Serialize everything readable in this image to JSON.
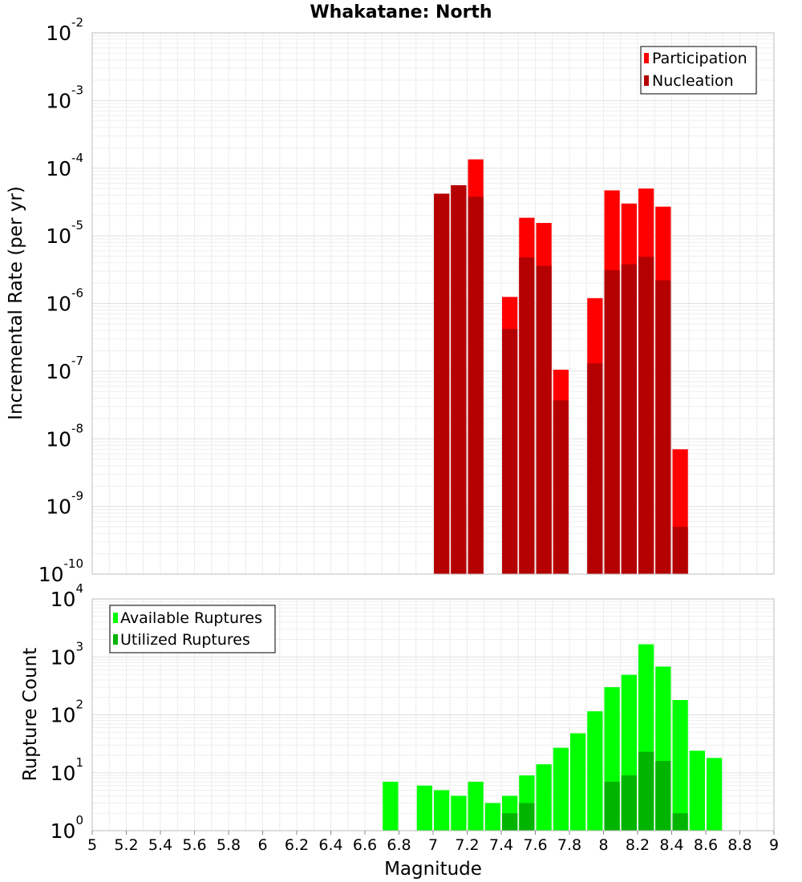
{
  "chart_data": [
    {
      "type": "bar",
      "title": "Whakatane: North",
      "xlabel": "",
      "ylabel": "Incremental Rate (per yr)",
      "yscale": "log",
      "ylim": [
        1e-10,
        0.01
      ],
      "xlim": [
        5,
        9
      ],
      "grid": true,
      "legend_placement": "top-right",
      "x": [
        7.0,
        7.1,
        7.2,
        7.4,
        7.5,
        7.6,
        7.7,
        7.9,
        8.0,
        8.1,
        8.2,
        8.3,
        8.4
      ],
      "series": [
        {
          "name": "Participation",
          "color": "#ff0000",
          "values": [
            4.2e-05,
            5.6e-05,
            0.000135,
            1.25e-06,
            1.85e-05,
            1.55e-05,
            1.05e-07,
            1.2e-06,
            4.7e-05,
            3e-05,
            5e-05,
            2.7e-05,
            7e-09
          ]
        },
        {
          "name": "Nucleation",
          "color": "#b40000",
          "values": [
            4.2e-05,
            5.6e-05,
            3.8e-05,
            4.2e-07,
            4.8e-06,
            3.6e-06,
            3.7e-08,
            1.3e-07,
            3.1e-06,
            3.8e-06,
            4.9e-06,
            2.2e-06,
            5e-10
          ]
        }
      ]
    },
    {
      "type": "bar",
      "title": "",
      "xlabel": "Magnitude",
      "ylabel": "Rupture Count",
      "yscale": "log",
      "ylim": [
        1,
        10000
      ],
      "xlim": [
        5,
        9
      ],
      "grid": true,
      "legend_placement": "top-left",
      "x": [
        6.7,
        6.9,
        7.0,
        7.1,
        7.2,
        7.3,
        7.4,
        7.5,
        7.6,
        7.7,
        7.8,
        7.9,
        8.0,
        8.1,
        8.2,
        8.3,
        8.4,
        8.5,
        8.6
      ],
      "series": [
        {
          "name": "Available Ruptures",
          "color": "#00ff00",
          "values": [
            7,
            6,
            5,
            4,
            7,
            3,
            4,
            9,
            14,
            27,
            48,
            115,
            300,
            490,
            1650,
            680,
            180,
            24,
            18
          ]
        },
        {
          "name": "Utilized Ruptures",
          "color": "#00b400",
          "values": [
            0,
            0,
            1,
            1,
            1,
            1,
            2,
            3,
            1,
            1,
            0,
            1,
            7,
            9,
            23,
            16,
            2,
            0,
            0
          ]
        }
      ]
    }
  ],
  "x_tick_labels": [
    "5",
    "5.2",
    "5.4",
    "5.6",
    "5.8",
    "6",
    "6.2",
    "6.4",
    "6.6",
    "6.8",
    "7",
    "7.2",
    "7.4",
    "7.6",
    "7.8",
    "8",
    "8.2",
    "8.4",
    "8.6",
    "8.8",
    "9"
  ]
}
